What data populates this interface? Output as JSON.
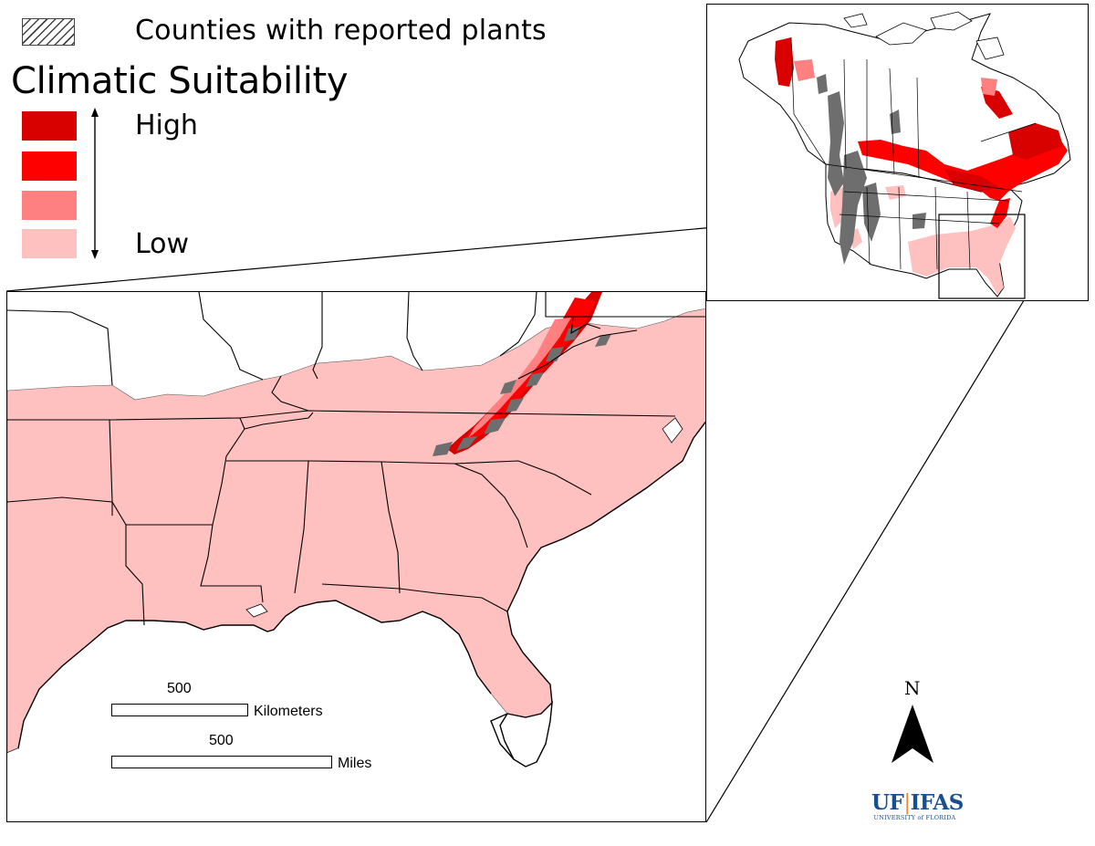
{
  "legend": {
    "hatch_label": "Counties with reported plants",
    "title": "Climatic Suitability",
    "high_label": "High",
    "low_label": "Low",
    "classes": [
      {
        "level": "highest",
        "color": "#d90000"
      },
      {
        "level": "high",
        "color": "#ff0000"
      },
      {
        "level": "moderate",
        "color": "#ff8080"
      },
      {
        "level": "low",
        "color": "#ffc0c0"
      }
    ]
  },
  "scale_bars": {
    "km": {
      "value": "500",
      "unit": "Kilometers"
    },
    "mi": {
      "value": "500",
      "unit": "Miles"
    }
  },
  "north_arrow": {
    "label": "N"
  },
  "logo": {
    "uf": "UF",
    "separator": "|",
    "ifas": "IFAS",
    "subtitle": "UNIVERSITY of FLORIDA"
  },
  "colors": {
    "low": "#ffc0c0",
    "moderate": "#ff8080",
    "high": "#ff0000",
    "highest": "#d90000",
    "reported_county_gray": "#6e6e6e",
    "boundary": "#000000"
  }
}
